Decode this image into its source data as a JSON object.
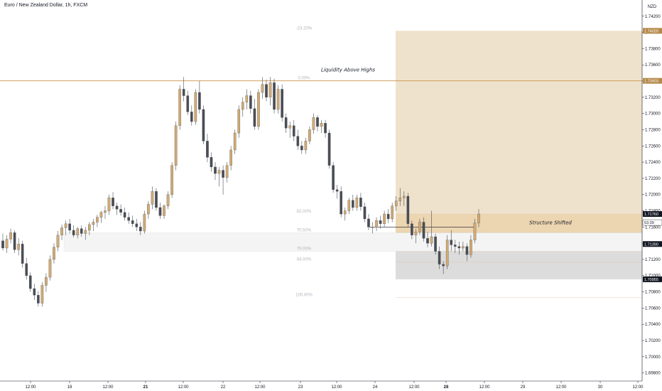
{
  "header": {
    "title": "Euro / New Zealand Dollar, 1h, FXCM"
  },
  "axis": {
    "currency": "NZD"
  },
  "chart_data": {
    "type": "candlestick",
    "title": "Euro / New Zealand Dollar, 1h, FXCM",
    "y_ticks": [
      "1.74200",
      "1.74000",
      "1.73800",
      "1.73600",
      "1.73400",
      "1.73200",
      "1.73000",
      "1.72800",
      "1.72600",
      "1.72400",
      "1.72200",
      "1.72000",
      "1.71800",
      "1.71600",
      "1.71400",
      "1.71200",
      "1.71000",
      "1.70800",
      "1.70600",
      "1.70400",
      "1.70200",
      "1.70000",
      "1.69800"
    ],
    "ylim": [
      1.697,
      1.744
    ],
    "x_ticks": [
      {
        "label": "12:00",
        "bold": false
      },
      {
        "label": "18",
        "bold": false
      },
      {
        "label": "12:00",
        "bold": false
      },
      {
        "label": "21",
        "bold": true
      },
      {
        "label": "12:00",
        "bold": false
      },
      {
        "label": "22",
        "bold": false
      },
      {
        "label": "12:00",
        "bold": false
      },
      {
        "label": "23",
        "bold": false
      },
      {
        "label": "12:00",
        "bold": false
      },
      {
        "label": "24",
        "bold": false
      },
      {
        "label": "12:00",
        "bold": false
      },
      {
        "label": "28",
        "bold": true
      },
      {
        "label": "12:00",
        "bold": false
      },
      {
        "label": "29",
        "bold": false
      },
      {
        "label": "12:00",
        "bold": false
      },
      {
        "label": "30",
        "bold": false
      },
      {
        "label": "12:00",
        "bold": false
      }
    ],
    "price_tags": [
      {
        "label": "1.74020",
        "value": 1.7402,
        "color": "#b5894a"
      },
      {
        "label": "1.73403",
        "value": 1.73403,
        "color": "#b5894a"
      },
      {
        "label": "1.71760",
        "value": 1.7176,
        "color": "#131722"
      },
      {
        "label": "53:39",
        "value": 1.71655,
        "color": "#ffffff"
      },
      {
        "label": "1.71390",
        "value": 1.7139,
        "color": "#131722"
      },
      {
        "label": "1.70955",
        "value": 1.70955,
        "color": "#131722"
      }
    ],
    "fib_levels": [
      {
        "label": "-23.20%",
        "value": 1.7402
      },
      {
        "label": "0.00%",
        "value": 1.73403
      },
      {
        "label": "62.00%",
        "value": 1.7176
      },
      {
        "label": "70.50%",
        "value": 1.7153
      },
      {
        "label": "79.00%",
        "value": 1.713
      },
      {
        "label": "84.00%",
        "value": 1.7117
      },
      {
        "label": "100.00%",
        "value": 1.7073
      }
    ],
    "annotations": [
      "Liquidity Above Highs",
      "Structure Shifted"
    ],
    "colors": {
      "up": "#d1aa72",
      "down": "#4a4d55",
      "level": "#c8944b",
      "zone_top": "#efe2cc",
      "zone_mid": "#ecd5b1",
      "zone_low": "#dcdcdc"
    },
    "candles": [
      [
        1.7143,
        1.7152,
        1.7131,
        1.7134
      ],
      [
        1.7134,
        1.715,
        1.7128,
        1.7145
      ],
      [
        1.7145,
        1.7158,
        1.714,
        1.7153
      ],
      [
        1.7153,
        1.7156,
        1.7128,
        1.7132
      ],
      [
        1.7132,
        1.7146,
        1.7125,
        1.7139
      ],
      [
        1.7139,
        1.7143,
        1.711,
        1.7115
      ],
      [
        1.7115,
        1.7122,
        1.7095,
        1.71
      ],
      [
        1.71,
        1.7104,
        1.708,
        1.7084
      ],
      [
        1.7084,
        1.709,
        1.707,
        1.7076
      ],
      [
        1.7076,
        1.7081,
        1.7062,
        1.7066
      ],
      [
        1.7066,
        1.7092,
        1.7062,
        1.7088
      ],
      [
        1.7088,
        1.7103,
        1.708,
        1.7098
      ],
      [
        1.7098,
        1.7125,
        1.7094,
        1.712
      ],
      [
        1.712,
        1.714,
        1.7115,
        1.7135
      ],
      [
        1.7135,
        1.7155,
        1.713,
        1.715
      ],
      [
        1.715,
        1.7163,
        1.7144,
        1.7159
      ],
      [
        1.7159,
        1.7168,
        1.715,
        1.7164
      ],
      [
        1.7164,
        1.717,
        1.7152,
        1.7156
      ],
      [
        1.7156,
        1.7162,
        1.7147,
        1.715
      ],
      [
        1.715,
        1.716,
        1.7146,
        1.7158
      ],
      [
        1.7158,
        1.7162,
        1.7148,
        1.7152
      ],
      [
        1.7152,
        1.716,
        1.7144,
        1.7156
      ],
      [
        1.7156,
        1.7166,
        1.715,
        1.7163
      ],
      [
        1.7163,
        1.717,
        1.7155,
        1.7166
      ],
      [
        1.7166,
        1.7175,
        1.716,
        1.7172
      ],
      [
        1.7172,
        1.718,
        1.7165,
        1.7178
      ],
      [
        1.7178,
        1.7186,
        1.717,
        1.718
      ],
      [
        1.718,
        1.72,
        1.7175,
        1.7196
      ],
      [
        1.7196,
        1.7203,
        1.7182,
        1.7186
      ],
      [
        1.7186,
        1.719,
        1.7175,
        1.7182
      ],
      [
        1.7182,
        1.7188,
        1.7174,
        1.7178
      ],
      [
        1.7178,
        1.7184,
        1.7168,
        1.7172
      ],
      [
        1.7172,
        1.7178,
        1.7164,
        1.7168
      ],
      [
        1.7168,
        1.7174,
        1.716,
        1.7164
      ],
      [
        1.7164,
        1.717,
        1.7155,
        1.716
      ],
      [
        1.716,
        1.7166,
        1.715,
        1.7155
      ],
      [
        1.7155,
        1.718,
        1.7152,
        1.7176
      ],
      [
        1.7176,
        1.7192,
        1.717,
        1.7188
      ],
      [
        1.7188,
        1.721,
        1.7182,
        1.7204
      ],
      [
        1.7204,
        1.7208,
        1.718,
        1.7184
      ],
      [
        1.7184,
        1.719,
        1.717,
        1.7174
      ],
      [
        1.7174,
        1.7188,
        1.717,
        1.7186
      ],
      [
        1.7186,
        1.7204,
        1.7182,
        1.72
      ],
      [
        1.72,
        1.724,
        1.7196,
        1.7236
      ],
      [
        1.7236,
        1.729,
        1.723,
        1.7285
      ],
      [
        1.7285,
        1.7335,
        1.728,
        1.733
      ],
      [
        1.733,
        1.7345,
        1.7315,
        1.7322
      ],
      [
        1.7322,
        1.7328,
        1.7298,
        1.7302
      ],
      [
        1.7302,
        1.731,
        1.7285,
        1.729
      ],
      [
        1.729,
        1.733,
        1.7286,
        1.7326
      ],
      [
        1.7326,
        1.734,
        1.73,
        1.7305
      ],
      [
        1.7305,
        1.731,
        1.7262,
        1.7266
      ],
      [
        1.7266,
        1.7275,
        1.724,
        1.7246
      ],
      [
        1.7246,
        1.7252,
        1.7228,
        1.7234
      ],
      [
        1.7234,
        1.724,
        1.7218,
        1.7226
      ],
      [
        1.7226,
        1.7234,
        1.721,
        1.723
      ],
      [
        1.723,
        1.7236,
        1.72,
        1.7221
      ],
      [
        1.7221,
        1.724,
        1.7215,
        1.7236
      ],
      [
        1.7236,
        1.726,
        1.723,
        1.7255
      ],
      [
        1.7255,
        1.728,
        1.725,
        1.7276
      ],
      [
        1.7276,
        1.731,
        1.727,
        1.7305
      ],
      [
        1.7305,
        1.732,
        1.7296,
        1.7314
      ],
      [
        1.7314,
        1.733,
        1.7305,
        1.7322
      ],
      [
        1.7322,
        1.7328,
        1.73,
        1.7306
      ],
      [
        1.7306,
        1.7318,
        1.728,
        1.7284
      ],
      [
        1.7284,
        1.733,
        1.728,
        1.7326
      ],
      [
        1.7326,
        1.7345,
        1.7318,
        1.7336
      ],
      [
        1.7336,
        1.7342,
        1.7315,
        1.732
      ],
      [
        1.732,
        1.7345,
        1.731,
        1.7338
      ],
      [
        1.7338,
        1.7343,
        1.73,
        1.7305
      ],
      [
        1.7305,
        1.7335,
        1.73,
        1.733
      ],
      [
        1.733,
        1.7336,
        1.729,
        1.7295
      ],
      [
        1.7295,
        1.73,
        1.7276,
        1.7282
      ],
      [
        1.7282,
        1.729,
        1.727,
        1.7285
      ],
      [
        1.7285,
        1.7292,
        1.7266,
        1.7272
      ],
      [
        1.7272,
        1.728,
        1.7255,
        1.726
      ],
      [
        1.726,
        1.7266,
        1.725,
        1.7255
      ],
      [
        1.7255,
        1.727,
        1.725,
        1.7266
      ],
      [
        1.7266,
        1.7284,
        1.7262,
        1.728
      ],
      [
        1.728,
        1.73,
        1.7275,
        1.7295
      ],
      [
        1.7295,
        1.7298,
        1.7278,
        1.7284
      ],
      [
        1.7284,
        1.7292,
        1.7276,
        1.7288
      ],
      [
        1.7288,
        1.7292,
        1.727,
        1.7276
      ],
      [
        1.7276,
        1.728,
        1.7232,
        1.7236
      ],
      [
        1.7236,
        1.724,
        1.7202,
        1.7206
      ],
      [
        1.7206,
        1.7212,
        1.7195,
        1.7204
      ],
      [
        1.7204,
        1.721,
        1.7172,
        1.7176
      ],
      [
        1.7176,
        1.7184,
        1.7168,
        1.718
      ],
      [
        1.718,
        1.7196,
        1.7176,
        1.7193
      ],
      [
        1.7193,
        1.72,
        1.718,
        1.7184
      ],
      [
        1.7184,
        1.72,
        1.718,
        1.7196
      ],
      [
        1.7196,
        1.7202,
        1.718,
        1.7185
      ],
      [
        1.7185,
        1.719,
        1.7166,
        1.717
      ],
      [
        1.717,
        1.7176,
        1.7156,
        1.716
      ],
      [
        1.716,
        1.7166,
        1.7152,
        1.716
      ],
      [
        1.716,
        1.7172,
        1.7155,
        1.7168
      ],
      [
        1.7168,
        1.7174,
        1.7158,
        1.7164
      ],
      [
        1.7164,
        1.718,
        1.716,
        1.7176
      ],
      [
        1.7176,
        1.7182,
        1.7165,
        1.717
      ],
      [
        1.717,
        1.719,
        1.7166,
        1.7186
      ],
      [
        1.7186,
        1.7198,
        1.718,
        1.7192
      ],
      [
        1.7192,
        1.7208,
        1.7186,
        1.7196
      ],
      [
        1.7196,
        1.7204,
        1.7186,
        1.7198
      ],
      [
        1.7198,
        1.7202,
        1.716,
        1.7164
      ],
      [
        1.7164,
        1.7168,
        1.7145,
        1.715
      ],
      [
        1.715,
        1.7158,
        1.714,
        1.7154
      ],
      [
        1.7154,
        1.717,
        1.715,
        1.7166
      ],
      [
        1.7166,
        1.7172,
        1.7142,
        1.7146
      ],
      [
        1.7146,
        1.7154,
        1.7135,
        1.714
      ],
      [
        1.714,
        1.718,
        1.7136,
        1.7148
      ],
      [
        1.7148,
        1.7152,
        1.7126,
        1.713
      ],
      [
        1.713,
        1.7136,
        1.7108,
        1.7114
      ],
      [
        1.7114,
        1.7118,
        1.7102,
        1.7112
      ],
      [
        1.7112,
        1.715,
        1.7108,
        1.7144
      ],
      [
        1.7144,
        1.7156,
        1.713,
        1.7138
      ],
      [
        1.7138,
        1.7144,
        1.7128,
        1.7136
      ],
      [
        1.7136,
        1.7142,
        1.7126,
        1.7134
      ],
      [
        1.7134,
        1.7142,
        1.713,
        1.7136
      ],
      [
        1.7136,
        1.714,
        1.7118,
        1.7126
      ],
      [
        1.7126,
        1.715,
        1.7122,
        1.7144
      ],
      [
        1.7144,
        1.717,
        1.714,
        1.7165
      ],
      [
        1.7165,
        1.7182,
        1.716,
        1.7176
      ]
    ]
  }
}
